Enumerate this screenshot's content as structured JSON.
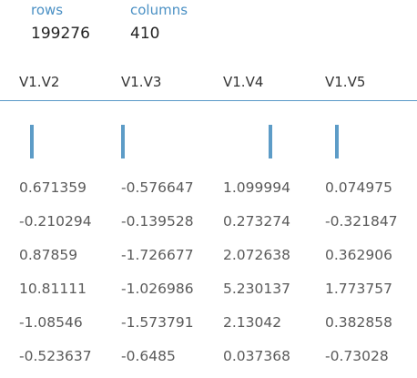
{
  "summary": {
    "rows_label": "rows",
    "rows_value": "199276",
    "columns_label": "columns",
    "columns_value": "410"
  },
  "colors": {
    "accent": "#4a90c4",
    "histogram": "#5d9cc7",
    "divider": "#5a9ac8"
  },
  "table": {
    "headers": [
      "V1.V2",
      "V1.V3",
      "V1.V4",
      "V1.V5"
    ],
    "rows": [
      [
        "0.671359",
        "-0.576647",
        "1.099994",
        "0.074975"
      ],
      [
        "-0.210294",
        "-0.139528",
        "0.273274",
        "-0.321847"
      ],
      [
        "0.87859",
        "-1.726677",
        "2.072638",
        "0.362906"
      ],
      [
        "10.81111",
        "-1.026986",
        "5.230137",
        "1.773757"
      ],
      [
        "-1.08546",
        "-1.573791",
        "2.13042",
        "0.382858"
      ],
      [
        "-0.523637",
        "-0.6485",
        "0.037368",
        "-0.73028"
      ]
    ]
  }
}
